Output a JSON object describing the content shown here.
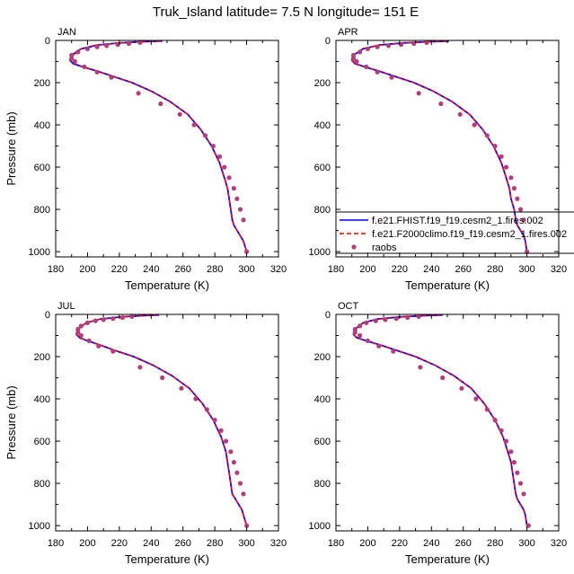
{
  "chart_data": {
    "type": "line",
    "title": "Truk_Island  latitude= 7.5 N longitude= 151 E",
    "xlabel": "Temperature (K)",
    "ylabel": "Pressure (mb)",
    "xlim": [
      180,
      320
    ],
    "ylim": [
      1025,
      0
    ],
    "xticks": [
      180,
      200,
      220,
      240,
      260,
      280,
      300,
      320
    ],
    "yticks": [
      0,
      200,
      400,
      600,
      800,
      1000
    ],
    "legend": {
      "placement": "bottom-right of APR panel",
      "entries": [
        {
          "label": "f.e21.FHIST.f19_f19.cesm2_1.fires.002",
          "color": "#0000ff",
          "style": "solid"
        },
        {
          "label": "f.e21.F2000climo.f19_f19.cesm2_1.fires.002",
          "color": "#ff0000",
          "style": "dashed"
        },
        {
          "label": "raobs",
          "color": "#b0407a",
          "style": "marker"
        }
      ]
    },
    "panels": [
      {
        "label": "JAN",
        "series": [
          {
            "name": "f.e21.FHIST.f19_f19.cesm2_1.fires.002",
            "temperature": [
              247,
              232,
              220,
              206,
              196,
              190,
              189,
              191,
              197,
              206,
              216,
              228,
              240,
              252,
              263,
              271,
              278,
              283,
              286,
              288,
              289,
              290,
              291,
              292,
              294,
              296,
              298,
              300
            ],
            "pressure": [
              3,
              7,
              12,
              22,
              40,
              70,
              95,
              110,
              125,
              145,
              170,
              200,
              240,
              290,
              350,
              420,
              500,
              580,
              650,
              700,
              750,
              800,
              850,
              875,
              900,
              925,
              950,
              1000
            ]
          },
          {
            "name": "f.e21.F2000climo.f19_f19.cesm2_1.fires.002",
            "temperature": [
              246,
              231,
              219,
              205,
              196,
              191,
              189,
              192,
              197,
              206,
              216,
              228,
              240,
              252,
              263,
              271,
              278,
              283,
              286,
              288,
              289,
              290,
              291,
              292,
              294,
              296,
              298,
              300
            ],
            "pressure": [
              3,
              7,
              12,
              22,
              40,
              70,
              95,
              110,
              125,
              145,
              170,
              200,
              240,
              290,
              350,
              420,
              500,
              580,
              650,
              700,
              750,
              800,
              850,
              875,
              900,
              925,
              950,
              1000
            ]
          },
          {
            "name": "raobs",
            "temperature": [
              233,
              226,
              219,
              212,
              206,
              200,
              194,
              190,
              190,
              192,
              198,
              206,
              215,
              232,
              246,
              258,
              267,
              274,
              279,
              283,
              286,
              289,
              292,
              294,
              296,
              298,
              300
            ],
            "pressure": [
              10,
              15,
              20,
              25,
              30,
              40,
              55,
              70,
              85,
              100,
              125,
              150,
              175,
              250,
              300,
              350,
              400,
              450,
              500,
              550,
              600,
              650,
              700,
              750,
              800,
              850,
              1000
            ]
          }
        ]
      },
      {
        "label": "APR",
        "series": [
          {
            "name": "f.e21.FHIST.f19_f19.cesm2_1.fires.002",
            "temperature": [
              251,
              237,
              222,
              207,
              197,
              191,
              190,
              192,
              198,
              207,
              217,
              229,
              241,
              253,
              264,
              272,
              279,
              284,
              287,
              289,
              290,
              292,
              293,
              294,
              296,
              298,
              299,
              300
            ],
            "pressure": [
              3,
              7,
              12,
              22,
              40,
              70,
              95,
              110,
              125,
              145,
              170,
              200,
              240,
              290,
              350,
              420,
              500,
              580,
              650,
              700,
              750,
              800,
              850,
              875,
              900,
              925,
              950,
              1000
            ]
          },
          {
            "name": "f.e21.F2000climo.f19_f19.cesm2_1.fires.002",
            "temperature": [
              250,
              236,
              221,
              207,
              197,
              191,
              190,
              192,
              198,
              207,
              217,
              229,
              241,
              253,
              264,
              272,
              279,
              284,
              287,
              289,
              290,
              292,
              293,
              294,
              296,
              298,
              299,
              300
            ],
            "pressure": [
              3,
              7,
              12,
              22,
              40,
              70,
              95,
              110,
              125,
              145,
              170,
              200,
              240,
              290,
              350,
              420,
              500,
              580,
              650,
              700,
              750,
              800,
              850,
              875,
              900,
              925,
              950,
              1000
            ]
          },
          {
            "name": "raobs",
            "temperature": [
              237,
              229,
              221,
              213,
              206,
              200,
              195,
              191,
              191,
              193,
              199,
              206,
              215,
              232,
              246,
              258,
              267,
              275,
              280,
              284,
              287,
              290,
              292,
              294,
              296,
              298,
              300
            ],
            "pressure": [
              10,
              15,
              20,
              25,
              30,
              40,
              55,
              70,
              85,
              100,
              125,
              150,
              175,
              250,
              300,
              350,
              400,
              450,
              500,
              550,
              600,
              650,
              700,
              750,
              800,
              850,
              1000
            ]
          }
        ]
      },
      {
        "label": "JUL",
        "series": [
          {
            "name": "f.e21.FHIST.f19_f19.cesm2_1.fires.002",
            "temperature": [
              245,
              232,
              221,
              208,
              199,
              194,
              193,
              195,
              200,
              208,
              217,
              229,
              241,
              253,
              264,
              272,
              279,
              284,
              287,
              288,
              289,
              290,
              291,
              293,
              295,
              297,
              298,
              300
            ],
            "pressure": [
              3,
              7,
              12,
              22,
              40,
              70,
              95,
              110,
              125,
              145,
              170,
              200,
              240,
              290,
              350,
              420,
              500,
              580,
              650,
              700,
              750,
              800,
              850,
              875,
              900,
              925,
              950,
              1000
            ]
          },
          {
            "name": "f.e21.F2000climo.f19_f19.cesm2_1.fires.002",
            "temperature": [
              244,
              231,
              220,
              208,
              199,
              194,
              193,
              195,
              200,
              208,
              217,
              229,
              241,
              253,
              264,
              272,
              279,
              284,
              287,
              288,
              289,
              290,
              291,
              293,
              295,
              297,
              298,
              300
            ],
            "pressure": [
              3,
              7,
              12,
              22,
              40,
              70,
              95,
              110,
              125,
              145,
              170,
              200,
              240,
              290,
              350,
              420,
              500,
              580,
              650,
              700,
              750,
              800,
              850,
              875,
              900,
              925,
              950,
              1000
            ]
          },
          {
            "name": "raobs",
            "temperature": [
              228,
              222,
              216,
              210,
              205,
              200,
              196,
              194,
              194,
              196,
              201,
              207,
              216,
              233,
              247,
              259,
              268,
              275,
              280,
              284,
              287,
              290,
              292,
              294,
              296,
              298,
              300
            ],
            "pressure": [
              10,
              15,
              20,
              25,
              30,
              40,
              55,
              70,
              85,
              100,
              125,
              150,
              175,
              250,
              300,
              350,
              400,
              450,
              500,
              550,
              600,
              650,
              700,
              750,
              800,
              850,
              1000
            ]
          }
        ]
      },
      {
        "label": "OCT",
        "series": [
          {
            "name": "f.e21.FHIST.f19_f19.cesm2_1.fires.002",
            "temperature": [
              247,
              233,
              220,
              206,
              197,
              192,
              191,
              193,
              199,
              208,
              218,
              230,
              242,
              254,
              265,
              273,
              280,
              285,
              288,
              290,
              291,
              292,
              293,
              294,
              296,
              298,
              299,
              300
            ],
            "pressure": [
              3,
              7,
              12,
              22,
              40,
              70,
              95,
              110,
              125,
              145,
              170,
              200,
              240,
              290,
              350,
              420,
              500,
              580,
              650,
              700,
              750,
              800,
              850,
              875,
              900,
              925,
              950,
              1000
            ]
          },
          {
            "name": "f.e21.F2000climo.f19_f19.cesm2_1.fires.002",
            "temperature": [
              246,
              232,
              219,
              206,
              197,
              192,
              191,
              193,
              199,
              208,
              218,
              230,
              242,
              254,
              265,
              273,
              280,
              285,
              288,
              290,
              291,
              292,
              293,
              294,
              296,
              298,
              299,
              300
            ],
            "pressure": [
              3,
              7,
              12,
              22,
              40,
              70,
              95,
              110,
              125,
              145,
              170,
              200,
              240,
              290,
              350,
              420,
              500,
              580,
              650,
              700,
              750,
              800,
              850,
              875,
              900,
              925,
              950,
              1000
            ]
          },
          {
            "name": "raobs",
            "temperature": [
              232,
              225,
              218,
              211,
              205,
              199,
              195,
              192,
              192,
              195,
              200,
              207,
              216,
              233,
              247,
              259,
              268,
              275,
              280,
              284,
              287,
              290,
              292,
              294,
              296,
              298,
              301
            ],
            "pressure": [
              10,
              15,
              20,
              25,
              30,
              40,
              55,
              70,
              85,
              100,
              125,
              150,
              175,
              250,
              300,
              350,
              400,
              450,
              500,
              550,
              600,
              650,
              700,
              750,
              800,
              850,
              1000
            ]
          }
        ]
      }
    ]
  }
}
